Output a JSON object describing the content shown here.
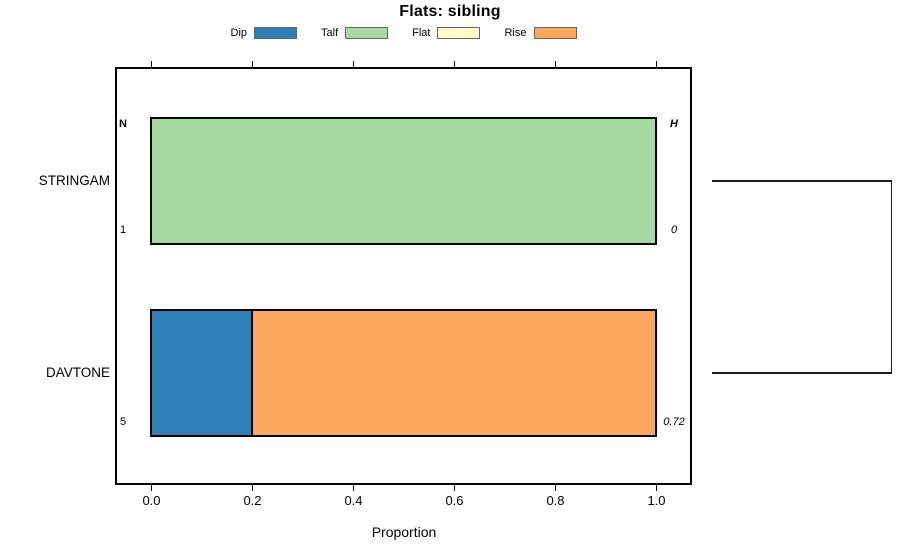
{
  "title": "Flats: sibling",
  "legend": {
    "items": [
      {
        "label": "Dip",
        "color": "#2E7FB8"
      },
      {
        "label": "Talf",
        "color": "#A6D8A2"
      },
      {
        "label": "Flat",
        "color": "#FFFFCC"
      },
      {
        "label": "Rise",
        "color": "#FBA85E"
      }
    ]
  },
  "chart_data": {
    "type": "bar",
    "orientation": "horizontal",
    "stacked": true,
    "title": "Flats: sibling",
    "xlabel": "Proportion",
    "xlim": [
      0,
      1
    ],
    "x_ticks": [
      "0.0",
      "0.2",
      "0.4",
      "0.6",
      "0.8",
      "1.0"
    ],
    "grid": false,
    "legend_position": "top",
    "categories": [
      "STRINGAM",
      "DAVTONE"
    ],
    "series": [
      {
        "name": "Dip",
        "color": "#2E7FB8",
        "values": [
          0,
          0.2
        ]
      },
      {
        "name": "Talf",
        "color": "#A6D8A2",
        "values": [
          1.0,
          0
        ]
      },
      {
        "name": "Flat",
        "color": "#FFFFCC",
        "values": [
          0,
          0
        ]
      },
      {
        "name": "Rise",
        "color": "#FBA85E",
        "values": [
          0,
          0.8
        ]
      }
    ],
    "annotations": {
      "left_header": "N",
      "right_header": "H",
      "left_values": [
        "1",
        "5"
      ],
      "right_values": [
        "0",
        "0.72"
      ]
    },
    "right_dendrogram": true
  }
}
